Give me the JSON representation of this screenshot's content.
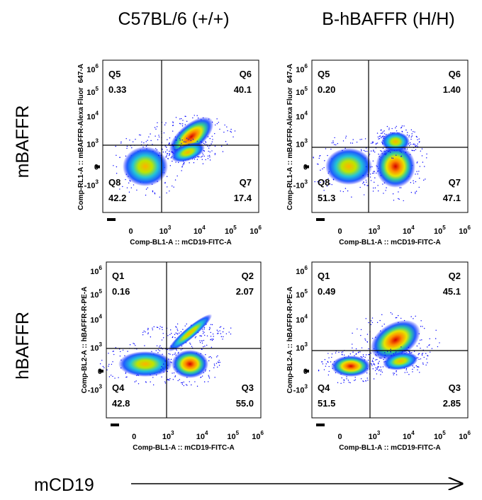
{
  "columns": [
    "C57BL/6 (+/+)",
    "B-hBAFFR (H/H)"
  ],
  "rows": [
    "mBAFFR",
    "hBAFFR"
  ],
  "axes": {
    "y_ticks": [
      {
        "base": "10",
        "exp": "6"
      },
      {
        "base": "10",
        "exp": "5"
      },
      {
        "base": "10",
        "exp": "4"
      },
      {
        "base": "10",
        "exp": "3"
      },
      {
        "base": "0"
      },
      {
        "base": "-10",
        "exp": "3"
      }
    ],
    "x_ticks": [
      {
        "base": "0"
      },
      {
        "base": "10",
        "exp": "3"
      },
      {
        "base": "10",
        "exp": "4"
      },
      {
        "base": "10",
        "exp": "5"
      },
      {
        "base": "10",
        "exp": "6"
      }
    ]
  },
  "panels": [
    {
      "y_axis_title": [
        "Comp-RL1-A :: mBAFFR-Alexa Fluor",
        "647-A"
      ],
      "x_axis_title": "Comp-BL1-A :: mCD19-FITC-A",
      "quadrants": [
        {
          "name": "Q5",
          "value": "0.33"
        },
        {
          "name": "Q6",
          "value": "40.1"
        },
        {
          "name": "Q8",
          "value": "42.2"
        },
        {
          "name": "Q7",
          "value": "17.4"
        }
      ]
    },
    {
      "y_axis_title": [
        "Comp-RL1-A :: mBAFFR-Alexa Fluor",
        "647-A"
      ],
      "x_axis_title": "Comp-BL1-A :: mCD19-FITC-A",
      "quadrants": [
        {
          "name": "Q5",
          "value": "0.20"
        },
        {
          "name": "Q6",
          "value": "1.40"
        },
        {
          "name": "Q8",
          "value": "51.3"
        },
        {
          "name": "Q7",
          "value": "47.1"
        }
      ]
    },
    {
      "y_axis_title": [
        "Comp-BL2-A :: hBAFFR-R-PE-A"
      ],
      "x_axis_title": "Comp-BL1-A :: mCD19-FITC-A",
      "quadrants": [
        {
          "name": "Q1",
          "value": "0.16"
        },
        {
          "name": "Q2",
          "value": "2.07"
        },
        {
          "name": "Q4",
          "value": "42.8"
        },
        {
          "name": "Q3",
          "value": "55.0"
        }
      ]
    },
    {
      "y_axis_title": [
        "Comp-BL2-A :: hBAFFR-R-PE-A"
      ],
      "x_axis_title": "Comp-BL1-A :: mCD19-FITC-A",
      "quadrants": [
        {
          "name": "Q1",
          "value": "0.49"
        },
        {
          "name": "Q2",
          "value": "45.1"
        },
        {
          "name": "Q4",
          "value": "51.5"
        },
        {
          "name": "Q3",
          "value": "2.85"
        }
      ]
    }
  ],
  "x_axis_label": "mCD19"
}
